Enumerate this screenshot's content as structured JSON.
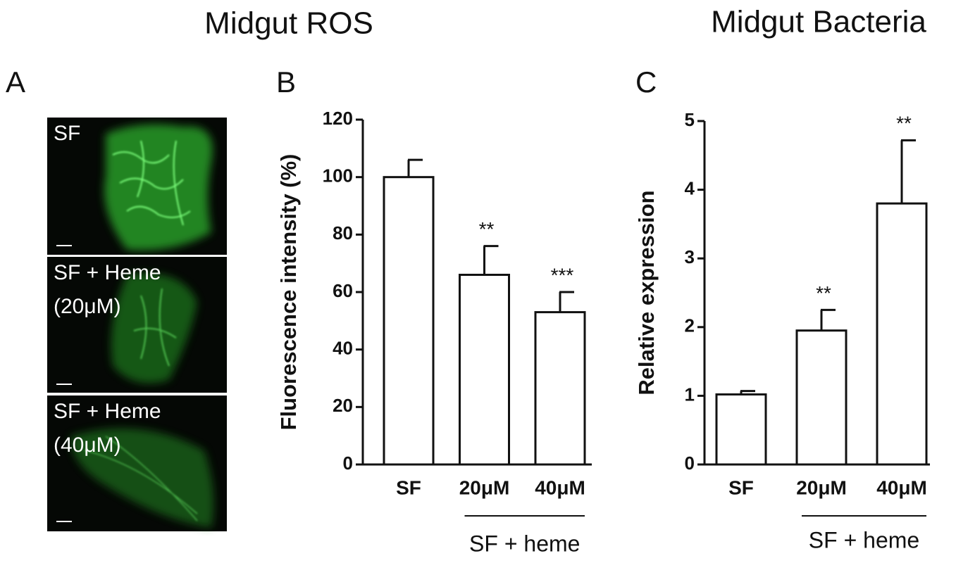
{
  "headings": [
    "Midgut ROS",
    "Midgut Bacteria"
  ],
  "panel_a": {
    "label": "A",
    "images": [
      {
        "lines": [
          "SF"
        ]
      },
      {
        "lines": [
          "SF + Heme",
          "(20μM)"
        ]
      },
      {
        "lines": [
          "SF + Heme",
          "(40μM)"
        ]
      }
    ]
  },
  "chart_data": [
    {
      "type": "bar",
      "panel_label": "B",
      "ylabel": "Fluorescence intensity (%)",
      "categories": [
        "SF",
        "20μM",
        "40μM"
      ],
      "values": [
        100,
        66,
        53
      ],
      "errors": [
        6,
        10,
        7
      ],
      "annotations": [
        null,
        "**",
        "***"
      ],
      "group_label": "SF + heme",
      "color": "#ffffff",
      "ylim": [
        0,
        120
      ],
      "yticks": [
        0,
        20,
        40,
        60,
        80,
        100,
        120
      ]
    },
    {
      "type": "bar",
      "panel_label": "C",
      "ylabel": "Relative expression",
      "categories": [
        "SF",
        "20μM",
        "40μM"
      ],
      "values": [
        1.02,
        1.95,
        3.8
      ],
      "errors": [
        0.05,
        0.3,
        0.92
      ],
      "annotations": [
        null,
        "**",
        "**"
      ],
      "group_label": "SF + heme",
      "color": "#ffffff",
      "ylim": [
        0,
        5
      ],
      "yticks": [
        0,
        1,
        2,
        3,
        4,
        5
      ]
    }
  ]
}
